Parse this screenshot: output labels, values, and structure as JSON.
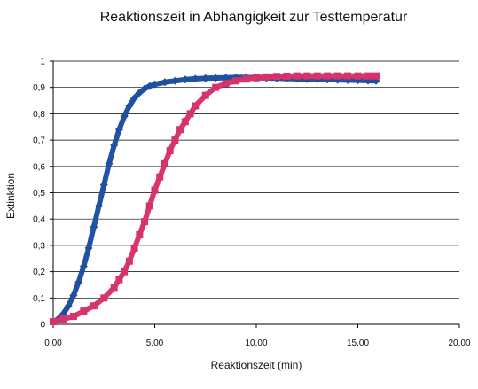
{
  "chart_data": {
    "type": "scatter",
    "title": "Reaktionszeit in Abhängigkeit zur Testtemperatur",
    "xlabel": "Reaktionszeit (min)",
    "ylabel": "Extinktion",
    "xlim": [
      0,
      20
    ],
    "ylim": [
      0,
      1
    ],
    "x_ticks": [
      "0,00",
      "5,00",
      "10,00",
      "15,00",
      "20,00"
    ],
    "y_ticks": [
      "0",
      "0,1",
      "0,2",
      "0,3",
      "0,4",
      "0,5",
      "0,6",
      "0,7",
      "0,8",
      "0,9",
      "1"
    ],
    "grid": "horizontal",
    "legend": "none",
    "series": [
      {
        "color": "#1f4fa0",
        "marker": "diamond",
        "x": [
          0,
          0.25,
          0.5,
          0.75,
          1,
          1.25,
          1.5,
          1.75,
          2,
          2.25,
          2.5,
          2.75,
          3,
          3.25,
          3.5,
          3.75,
          4,
          4.25,
          4.5,
          4.75,
          5,
          5.5,
          6,
          6.5,
          7,
          7.5,
          8,
          8.5,
          9,
          9.5,
          10,
          10.5,
          11,
          11.5,
          12,
          12.5,
          13,
          13.5,
          14,
          14.5,
          15,
          15.5,
          15.9
        ],
        "values": [
          0.01,
          0.02,
          0.04,
          0.07,
          0.11,
          0.16,
          0.22,
          0.29,
          0.37,
          0.45,
          0.53,
          0.61,
          0.68,
          0.74,
          0.79,
          0.83,
          0.86,
          0.88,
          0.895,
          0.905,
          0.912,
          0.92,
          0.925,
          0.93,
          0.933,
          0.935,
          0.936,
          0.937,
          0.938,
          0.938,
          0.937,
          0.936,
          0.935,
          0.934,
          0.933,
          0.932,
          0.931,
          0.93,
          0.929,
          0.928,
          0.927,
          0.926,
          0.925
        ]
      },
      {
        "color": "#d6336c",
        "marker": "square",
        "x": [
          0,
          0.5,
          1,
          1.5,
          2,
          2.5,
          3,
          3.25,
          3.5,
          3.75,
          4,
          4.25,
          4.5,
          4.75,
          5,
          5.25,
          5.5,
          5.75,
          6,
          6.25,
          6.5,
          6.75,
          7,
          7.5,
          8,
          8.5,
          9,
          9.5,
          10,
          10.5,
          11,
          11.5,
          12,
          12.5,
          13,
          13.5,
          14,
          14.5,
          15,
          15.5,
          15.9
        ],
        "values": [
          0.01,
          0.02,
          0.03,
          0.05,
          0.07,
          0.1,
          0.14,
          0.17,
          0.2,
          0.24,
          0.29,
          0.34,
          0.39,
          0.45,
          0.51,
          0.56,
          0.61,
          0.66,
          0.7,
          0.74,
          0.77,
          0.8,
          0.83,
          0.87,
          0.9,
          0.915,
          0.925,
          0.932,
          0.937,
          0.94,
          0.942,
          0.943,
          0.944,
          0.944,
          0.944,
          0.944,
          0.944,
          0.944,
          0.944,
          0.944,
          0.944
        ]
      }
    ]
  }
}
